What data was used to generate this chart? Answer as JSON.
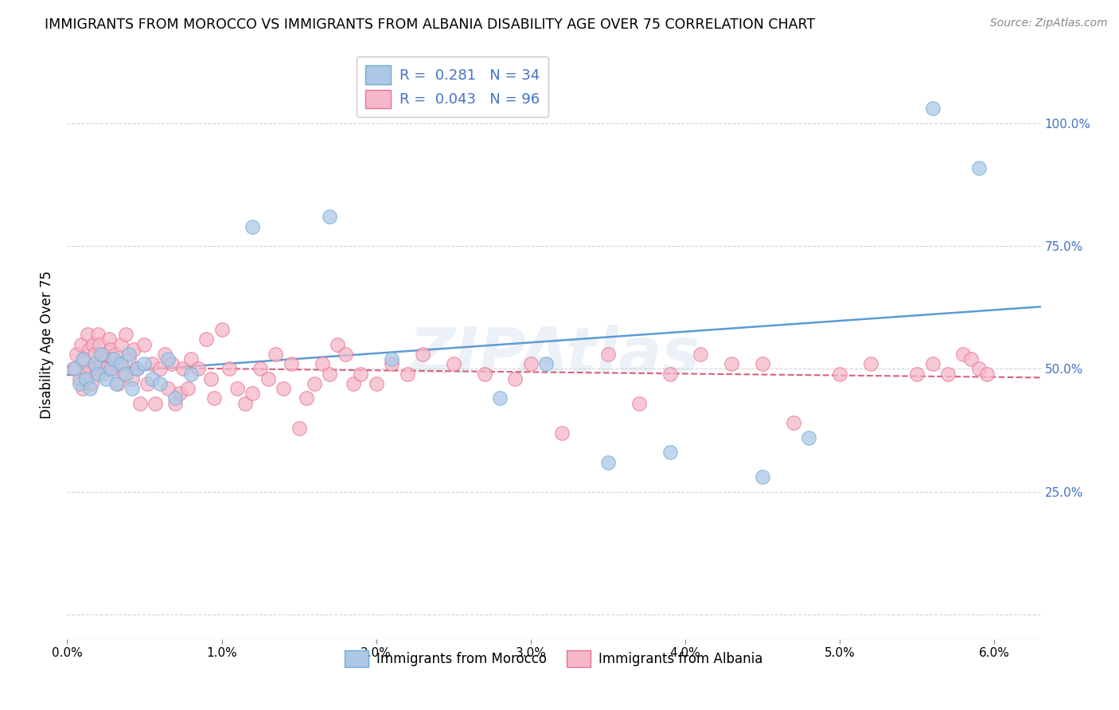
{
  "title": "IMMIGRANTS FROM MOROCCO VS IMMIGRANTS FROM ALBANIA DISABILITY AGE OVER 75 CORRELATION CHART",
  "source": "Source: ZipAtlas.com",
  "ylabel": "Disability Age Over 75",
  "xlabel_vals": [
    0.0,
    1.0,
    2.0,
    3.0,
    4.0,
    5.0,
    6.0
  ],
  "ylabel_vals": [
    0,
    25,
    50,
    75,
    100
  ],
  "ylabel_labels": [
    "",
    "25.0%",
    "50.0%",
    "75.0%",
    "100.0%"
  ],
  "xlim": [
    0.0,
    6.3
  ],
  "ylim": [
    -5,
    115
  ],
  "morocco_R": 0.281,
  "morocco_N": 34,
  "albania_R": 0.043,
  "albania_N": 96,
  "morocco_color": "#adc8e6",
  "albania_color": "#f5b8c8",
  "morocco_edge_color": "#6aaed6",
  "albania_edge_color": "#e87090",
  "morocco_line_color": "#5b9bd5",
  "albania_line_color": "#d9607a",
  "watermark": "ZIPAtlas",
  "morocco_x": [
    0.05,
    0.08,
    0.1,
    0.12,
    0.15,
    0.18,
    0.2,
    0.22,
    0.25,
    0.28,
    0.3,
    0.32,
    0.35,
    0.38,
    0.4,
    0.42,
    0.45,
    0.5,
    0.55,
    0.6,
    0.65,
    0.7,
    0.8,
    1.2,
    1.7,
    2.1,
    2.8,
    3.1,
    3.5,
    3.9,
    4.5,
    4.8,
    5.6,
    5.9
  ],
  "morocco_y": [
    50,
    47,
    52,
    48,
    46,
    51,
    49,
    53,
    48,
    50,
    52,
    47,
    51,
    49,
    53,
    46,
    50,
    51,
    48,
    47,
    52,
    44,
    49,
    79,
    81,
    52,
    44,
    51,
    31,
    33,
    28,
    36,
    103,
    91
  ],
  "albania_x": [
    0.04,
    0.06,
    0.08,
    0.09,
    0.1,
    0.11,
    0.12,
    0.13,
    0.14,
    0.15,
    0.16,
    0.17,
    0.18,
    0.19,
    0.2,
    0.21,
    0.22,
    0.23,
    0.24,
    0.25,
    0.27,
    0.28,
    0.29,
    0.3,
    0.31,
    0.32,
    0.33,
    0.35,
    0.37,
    0.38,
    0.4,
    0.42,
    0.43,
    0.45,
    0.47,
    0.5,
    0.52,
    0.55,
    0.57,
    0.6,
    0.63,
    0.65,
    0.68,
    0.7,
    0.73,
    0.75,
    0.78,
    0.8,
    0.85,
    0.9,
    0.93,
    0.95,
    1.0,
    1.05,
    1.1,
    1.15,
    1.2,
    1.25,
    1.3,
    1.35,
    1.4,
    1.45,
    1.5,
    1.55,
    1.6,
    1.65,
    1.7,
    1.75,
    1.8,
    1.85,
    1.9,
    2.0,
    2.1,
    2.2,
    2.3,
    2.5,
    2.7,
    2.9,
    3.0,
    3.2,
    3.5,
    3.7,
    3.9,
    4.1,
    4.3,
    4.5,
    4.7,
    5.0,
    5.2,
    5.5,
    5.6,
    5.7,
    5.8,
    5.85,
    5.9,
    5.95
  ],
  "albania_y": [
    50,
    53,
    48,
    55,
    46,
    52,
    49,
    57,
    54,
    50,
    47,
    55,
    53,
    50,
    57,
    55,
    51,
    49,
    53,
    50,
    56,
    54,
    52,
    50,
    53,
    51,
    47,
    55,
    49,
    57,
    52,
    48,
    54,
    50,
    43,
    55,
    47,
    51,
    43,
    50,
    53,
    46,
    51,
    43,
    45,
    50,
    46,
    52,
    50,
    56,
    48,
    44,
    58,
    50,
    46,
    43,
    45,
    50,
    48,
    53,
    46,
    51,
    38,
    44,
    47,
    51,
    49,
    55,
    53,
    47,
    49,
    47,
    51,
    49,
    53,
    51,
    49,
    48,
    51,
    37,
    53,
    43,
    49,
    53,
    51,
    51,
    39,
    49,
    51,
    49,
    51,
    49,
    53,
    52,
    50,
    49
  ]
}
